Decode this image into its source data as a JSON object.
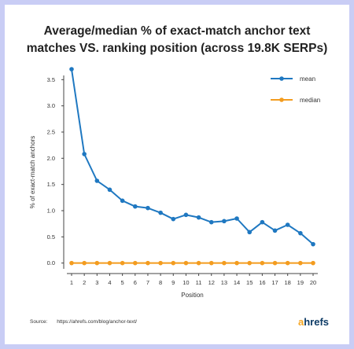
{
  "chart_data": {
    "type": "line",
    "title_lines": [
      "Average/median % of exact-match anchor text",
      "matches VS. ranking position (across 19.8K SERPs)"
    ],
    "xlabel": "Position",
    "ylabel": "% of exact-match anchors",
    "x": [
      1,
      2,
      3,
      4,
      5,
      6,
      7,
      8,
      9,
      10,
      11,
      12,
      13,
      14,
      15,
      16,
      17,
      18,
      19,
      20
    ],
    "ylim": [
      -0.2,
      3.7
    ],
    "yticks": [
      "0.0",
      "0.5",
      "1.0",
      "1.5",
      "2.0",
      "2.5",
      "3.0",
      "3.5"
    ],
    "ytick_values": [
      0,
      0.5,
      1.0,
      1.5,
      2.0,
      2.5,
      3.0,
      3.5
    ],
    "grid": false,
    "legend_position": "top-right",
    "series": [
      {
        "name": "mean",
        "color": "#1f78c1",
        "values": [
          3.7,
          2.08,
          1.57,
          1.4,
          1.19,
          1.08,
          1.05,
          0.96,
          0.84,
          0.92,
          0.87,
          0.78,
          0.8,
          0.85,
          0.59,
          0.78,
          0.62,
          0.73,
          0.57,
          0.36
        ]
      },
      {
        "name": "median",
        "color": "#f39c1f",
        "values": [
          0,
          0,
          0,
          0,
          0,
          0,
          0,
          0,
          0,
          0,
          0,
          0,
          0,
          0,
          0,
          0,
          0,
          0,
          0,
          0
        ]
      }
    ]
  },
  "footer": {
    "source_label": "Source:",
    "source_url": "https://ahrefs.com/blog/anchor-text/",
    "logo_a": "a",
    "logo_rest": "hrefs"
  }
}
